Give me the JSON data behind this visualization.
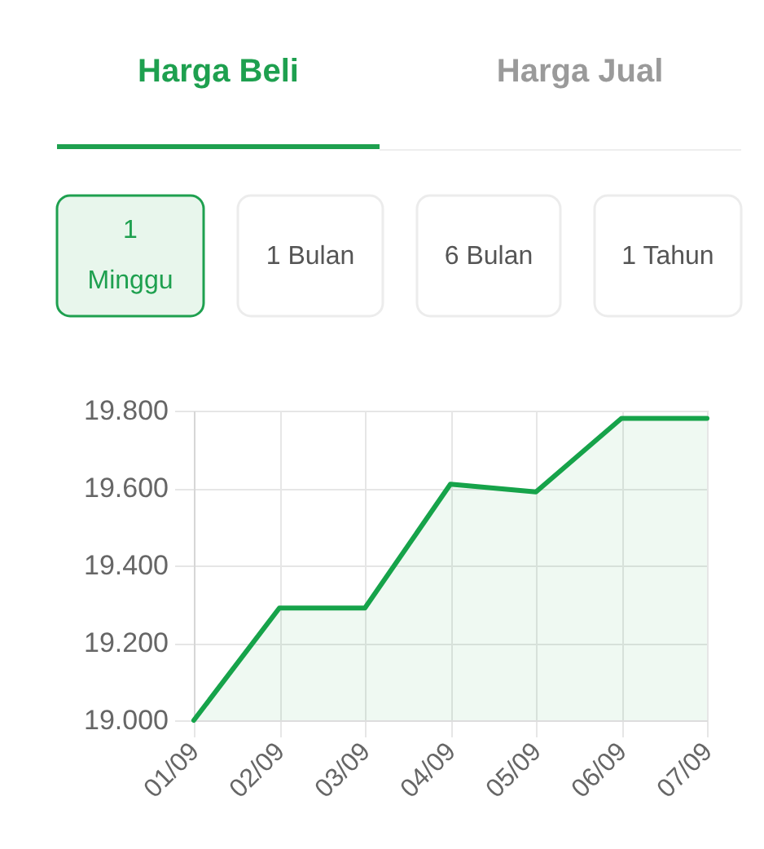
{
  "chart_data": {
    "type": "area",
    "annotations": [
      "Harga Beli",
      "Harga Jual",
      "1 Minggu",
      "1 Bulan",
      "6 Bulan",
      "1 Tahun"
    ],
    "categories": [
      "01/09",
      "02/09",
      "03/09",
      "04/09",
      "05/09",
      "06/09",
      "07/09"
    ],
    "values": [
      19000,
      19290,
      19290,
      19610,
      19590,
      19780,
      19780
    ],
    "color": "#16a34a",
    "ylim": [
      19000,
      19800
    ],
    "yticks": [
      {
        "value": 19000,
        "label": "19.000"
      },
      {
        "value": 19200,
        "label": "19.200"
      },
      {
        "value": 19400,
        "label": "19.400"
      },
      {
        "value": 19600,
        "label": "19.600"
      },
      {
        "value": 19800,
        "label": "19.800"
      }
    ],
    "grid": true
  }
}
